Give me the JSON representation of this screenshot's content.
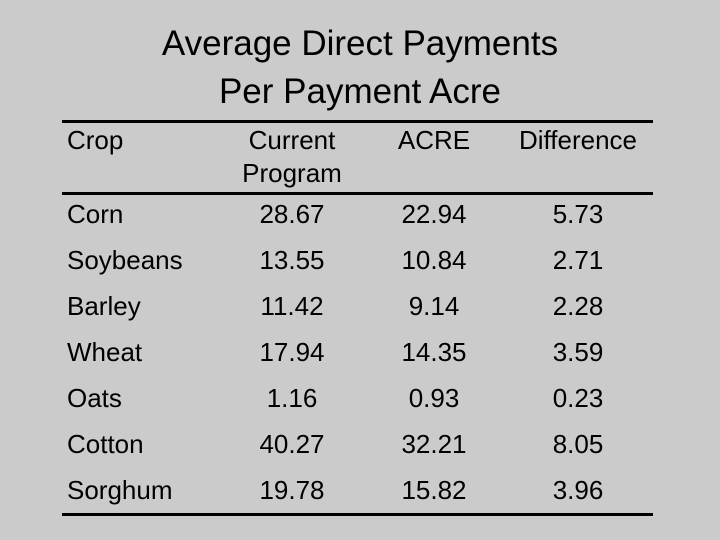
{
  "title": [
    "Average Direct Payments",
    "Per Payment Acre"
  ],
  "table": {
    "header": [
      "Crop",
      "Current Program",
      "ACRE",
      "Difference"
    ],
    "rows": [
      [
        "Corn",
        "28.67",
        "22.94",
        "5.73"
      ],
      [
        "Soybeans",
        "13.55",
        "10.84",
        "2.71"
      ],
      [
        "Barley",
        "11.42",
        "9.14",
        "2.28"
      ],
      [
        "Wheat",
        "17.94",
        "14.35",
        "3.59"
      ],
      [
        "Oats",
        "1.16",
        "0.93",
        "0.23"
      ],
      [
        "Cotton",
        "40.27",
        "32.21",
        "8.05"
      ],
      [
        "Sorghum",
        "19.78",
        "15.82",
        "3.96"
      ]
    ]
  }
}
